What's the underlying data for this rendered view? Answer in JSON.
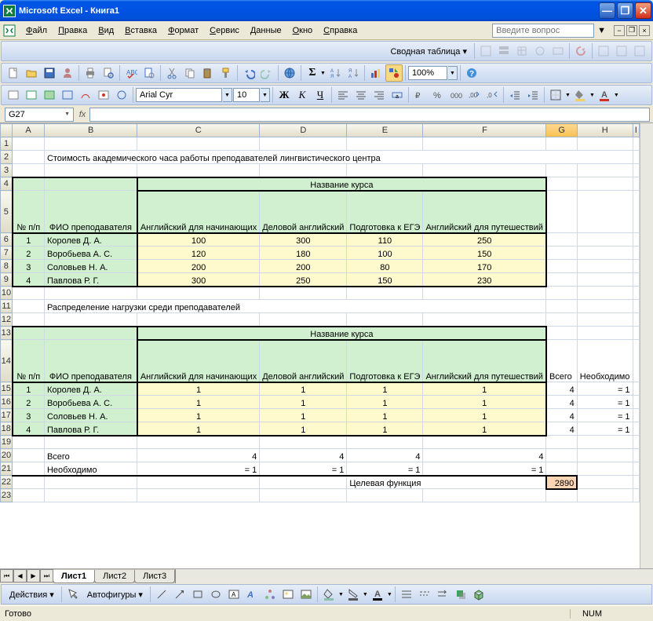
{
  "window": {
    "title": "Microsoft Excel - Книга1"
  },
  "menu": {
    "file": "Файл",
    "edit": "Правка",
    "view": "Вид",
    "insert": "Вставка",
    "format": "Формат",
    "tools": "Сервис",
    "data": "Данные",
    "window": "Окно",
    "help": "Справка",
    "question_placeholder": "Введите вопрос"
  },
  "pivot_toolbar": {
    "label": "Сводная таблица"
  },
  "formatting": {
    "font_name": "Arial Cyr",
    "font_size": "10",
    "zoom": "100%"
  },
  "namebox": "G27",
  "formula": "",
  "columns": [
    "A",
    "B",
    "C",
    "D",
    "E",
    "F",
    "G",
    "H",
    "I"
  ],
  "title1": "Стоимость академического часа работы преподавателей лингвистического центра",
  "course_header": "Название курса",
  "col_num": "№ п/п",
  "col_teacher": "ФИО преподавателя",
  "courses": [
    "Английский для начинающих",
    "Деловой английский",
    "Подготовка к ЕГЭ",
    "Английский для путешествий"
  ],
  "teachers": [
    "Королев Д. А.",
    "Воробьева А. С.",
    "Соловьев Н. А.",
    "Павлова Р. Г."
  ],
  "cost_rows": [
    [
      1,
      "Королев Д. А.",
      100,
      300,
      110,
      250
    ],
    [
      2,
      "Воробьева А. С.",
      120,
      180,
      100,
      150
    ],
    [
      3,
      "Соловьев Н. А.",
      200,
      200,
      80,
      170
    ],
    [
      4,
      "Павлова Р. Г.",
      300,
      250,
      150,
      230
    ]
  ],
  "title2": "Распределение нагрузки среди преподавателей",
  "total_label": "Всего",
  "need_label": "Необходимо",
  "load_rows": [
    [
      1,
      "Королев Д. А.",
      1,
      1,
      1,
      1,
      4,
      "= 1"
    ],
    [
      2,
      "Воробьева А. С.",
      1,
      1,
      1,
      1,
      4,
      "= 1"
    ],
    [
      3,
      "Соловьев Н. А.",
      1,
      1,
      1,
      1,
      4,
      "= 1"
    ],
    [
      4,
      "Павлова Р. Г.",
      1,
      1,
      1,
      1,
      4,
      "= 1"
    ]
  ],
  "col_totals": [
    4,
    4,
    4,
    4
  ],
  "col_need": [
    "= 1",
    "= 1",
    "= 1",
    "= 1"
  ],
  "objective_label": "Целевая функция",
  "objective_value": 2890,
  "sheet_tabs": {
    "s1": "Лист1",
    "s2": "Лист2",
    "s3": "Лист3"
  },
  "drawing": {
    "actions": "Действия",
    "autoshapes": "Автофигуры"
  },
  "status": {
    "ready": "Готово",
    "num": "NUM"
  },
  "colors": {
    "header_green": "#d0f0d0",
    "cell_yellow": "#fffacd",
    "cell_orange": "#fcd5b4",
    "grid_border": "#d0d7e5"
  }
}
